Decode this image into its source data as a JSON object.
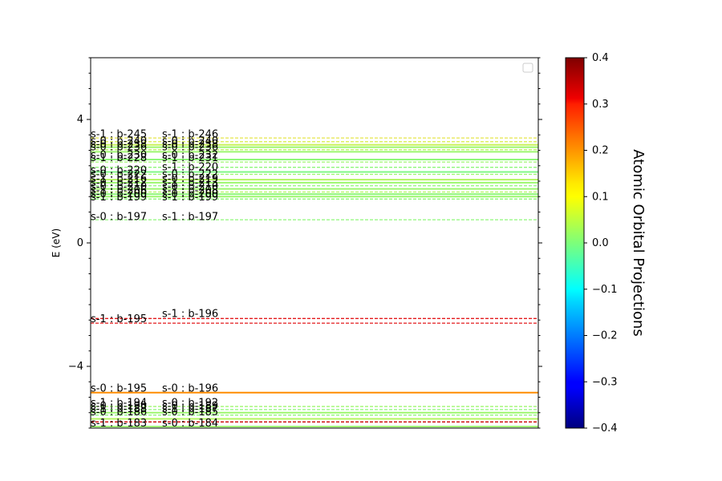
{
  "chart_data": {
    "type": "line",
    "title": "",
    "xlabel": "",
    "ylabel": "E (eV)",
    "ylim": [
      -6.0,
      6.0
    ],
    "yticks": [
      -4,
      0,
      4
    ],
    "legend": "top-right (empty)",
    "colorbar": {
      "label": "Atomic Orbital Projections",
      "range": [
        -0.4,
        0.4
      ],
      "ticks": [
        "0.4",
        "0.3",
        "0.2",
        "0.1",
        "0.0",
        "−0.1",
        "−0.2",
        "−0.3",
        "−0.4"
      ],
      "colormap": "jet"
    },
    "levels": [
      {
        "energy": 3.4,
        "style": "dashed",
        "color": "#e5e64a"
      },
      {
        "energy": 3.28,
        "style": "dashed",
        "color": "#d8ee44"
      },
      {
        "energy": 3.18,
        "style": "solid",
        "color": "#c8f25a"
      },
      {
        "energy": 3.1,
        "style": "solid",
        "color": "#9ef76a"
      },
      {
        "energy": 3.02,
        "style": "dashed",
        "color": "#b9f45a"
      },
      {
        "energy": 2.95,
        "style": "solid",
        "color": "#9df76f"
      },
      {
        "energy": 2.7,
        "style": "solid",
        "color": "#8ff77a"
      },
      {
        "energy": 2.62,
        "style": "dashed",
        "color": "#9df76f"
      },
      {
        "energy": 2.45,
        "style": "dashed",
        "color": "#8ff77a"
      },
      {
        "energy": 2.3,
        "style": "solid",
        "color": "#7ff886"
      },
      {
        "energy": 2.22,
        "style": "dashed",
        "color": "#9df76f"
      },
      {
        "energy": 2.05,
        "style": "solid",
        "color": "#b3f55f"
      },
      {
        "energy": 1.95,
        "style": "solid",
        "color": "#9df76f"
      },
      {
        "energy": 1.85,
        "style": "dashed",
        "color": "#8ff77a"
      },
      {
        "energy": 1.75,
        "style": "solid",
        "color": "#9df76f"
      },
      {
        "energy": 1.65,
        "style": "dashed",
        "color": "#b3f55f"
      },
      {
        "energy": 1.58,
        "style": "solid",
        "color": "#8ff77a"
      },
      {
        "energy": 1.5,
        "style": "solid",
        "color": "#9df76f"
      },
      {
        "energy": 1.42,
        "style": "dashed",
        "color": "#8ff77a"
      },
      {
        "energy": 0.75,
        "style": "dashed",
        "color": "#8ff77a"
      },
      {
        "energy": -2.45,
        "style": "dashed",
        "color": "#e31a1c"
      },
      {
        "energy": -2.6,
        "style": "dashed",
        "color": "#e31a1c"
      },
      {
        "energy": -4.85,
        "style": "solid",
        "color": "#ff8c00"
      },
      {
        "energy": -5.3,
        "style": "dashed",
        "color": "#9df76f"
      },
      {
        "energy": -5.4,
        "style": "dashed",
        "color": "#8ff77a"
      },
      {
        "energy": -5.5,
        "style": "solid",
        "color": "#9df76f"
      },
      {
        "energy": -5.58,
        "style": "dashed",
        "color": "#8ff77a"
      },
      {
        "energy": -5.7,
        "style": "solid",
        "color": "#b3f55f"
      },
      {
        "energy": -5.8,
        "style": "dashed",
        "color": "#cc0000"
      },
      {
        "energy": -5.95,
        "style": "solid",
        "color": "#9df76f"
      }
    ],
    "annotations": [
      {
        "text": "s-1 : b-245",
        "column": 1,
        "energy": 3.52
      },
      {
        "text": "s-1 : b-246",
        "column": 2,
        "energy": 3.52
      },
      {
        "text": "s-0 : b-240",
        "column": 1,
        "energy": 3.3
      },
      {
        "text": "s-0 : b-240",
        "column": 2,
        "energy": 3.3
      },
      {
        "text": "s-0 : b-238",
        "column": 1,
        "energy": 3.2
      },
      {
        "text": "s-0 : b-238",
        "column": 2,
        "energy": 3.2
      },
      {
        "text": "s-0 : b-236",
        "column": 1,
        "energy": 3.1
      },
      {
        "text": "s-0 : b-236",
        "column": 2,
        "energy": 3.1
      },
      {
        "text": "s-0 : b-230",
        "column": 1,
        "energy": 2.85
      },
      {
        "text": "s-0 : b-232",
        "column": 2,
        "energy": 2.85
      },
      {
        "text": "s-1 : b-228",
        "column": 1,
        "energy": 2.75
      },
      {
        "text": "s-1 : b-231",
        "column": 2,
        "energy": 2.75
      },
      {
        "text": "s-0 : b-220",
        "column": 1,
        "energy": 2.35
      },
      {
        "text": "s-1 : b-220",
        "column": 2,
        "energy": 2.45
      },
      {
        "text": "s-0 : b-222",
        "column": 1,
        "energy": 2.22
      },
      {
        "text": "s-0 : b-222",
        "column": 2,
        "energy": 2.22
      },
      {
        "text": "s-1 : b-216",
        "column": 1,
        "energy": 2.08
      },
      {
        "text": "s-0 : b-219",
        "column": 2,
        "energy": 2.08
      },
      {
        "text": "s-0 : b-212",
        "column": 1,
        "energy": 1.95
      },
      {
        "text": "s-1 : b-213",
        "column": 2,
        "energy": 1.95
      },
      {
        "text": "s-0 : b-210",
        "column": 1,
        "energy": 1.82
      },
      {
        "text": "s-0 : b-210",
        "column": 2,
        "energy": 1.82
      },
      {
        "text": "s-1 : b-206",
        "column": 1,
        "energy": 1.7
      },
      {
        "text": "s-1 : b-208",
        "column": 2,
        "energy": 1.7
      },
      {
        "text": "s-0 : b-200",
        "column": 1,
        "energy": 1.58
      },
      {
        "text": "s-0 : b-200",
        "column": 2,
        "energy": 1.58
      },
      {
        "text": "s-1 : b-199",
        "column": 1,
        "energy": 1.48
      },
      {
        "text": "s-1 : b-199",
        "column": 2,
        "energy": 1.48
      },
      {
        "text": "s-0 : b-197",
        "column": 1,
        "energy": 0.85
      },
      {
        "text": "s-1 : b-197",
        "column": 2,
        "energy": 0.85
      },
      {
        "text": "s-1 : b-196",
        "column": 2,
        "energy": -2.3
      },
      {
        "text": "s-1 : b-195",
        "column": 1,
        "energy": -2.47
      },
      {
        "text": "s-0 : b-195",
        "column": 1,
        "energy": -4.72
      },
      {
        "text": "s-0 : b-196",
        "column": 2,
        "energy": -4.72
      },
      {
        "text": "s-1 : b-194",
        "column": 1,
        "energy": -5.18
      },
      {
        "text": "s-0 : b-192",
        "column": 2,
        "energy": -5.18
      },
      {
        "text": "s-0 : b-190",
        "column": 1,
        "energy": -5.28
      },
      {
        "text": "s-0 : b-189",
        "column": 2,
        "energy": -5.28
      },
      {
        "text": "s-1 : b-188",
        "column": 1,
        "energy": -5.38
      },
      {
        "text": "s-1 : b-187",
        "column": 2,
        "energy": -5.38
      },
      {
        "text": "s-0 : b-186",
        "column": 1,
        "energy": -5.48
      },
      {
        "text": "s-0 : b-185",
        "column": 2,
        "energy": -5.48
      },
      {
        "text": "s-1 : b-183",
        "column": 1,
        "energy": -5.85
      },
      {
        "text": "s-0 : b-184",
        "column": 2,
        "energy": -5.85
      }
    ]
  }
}
